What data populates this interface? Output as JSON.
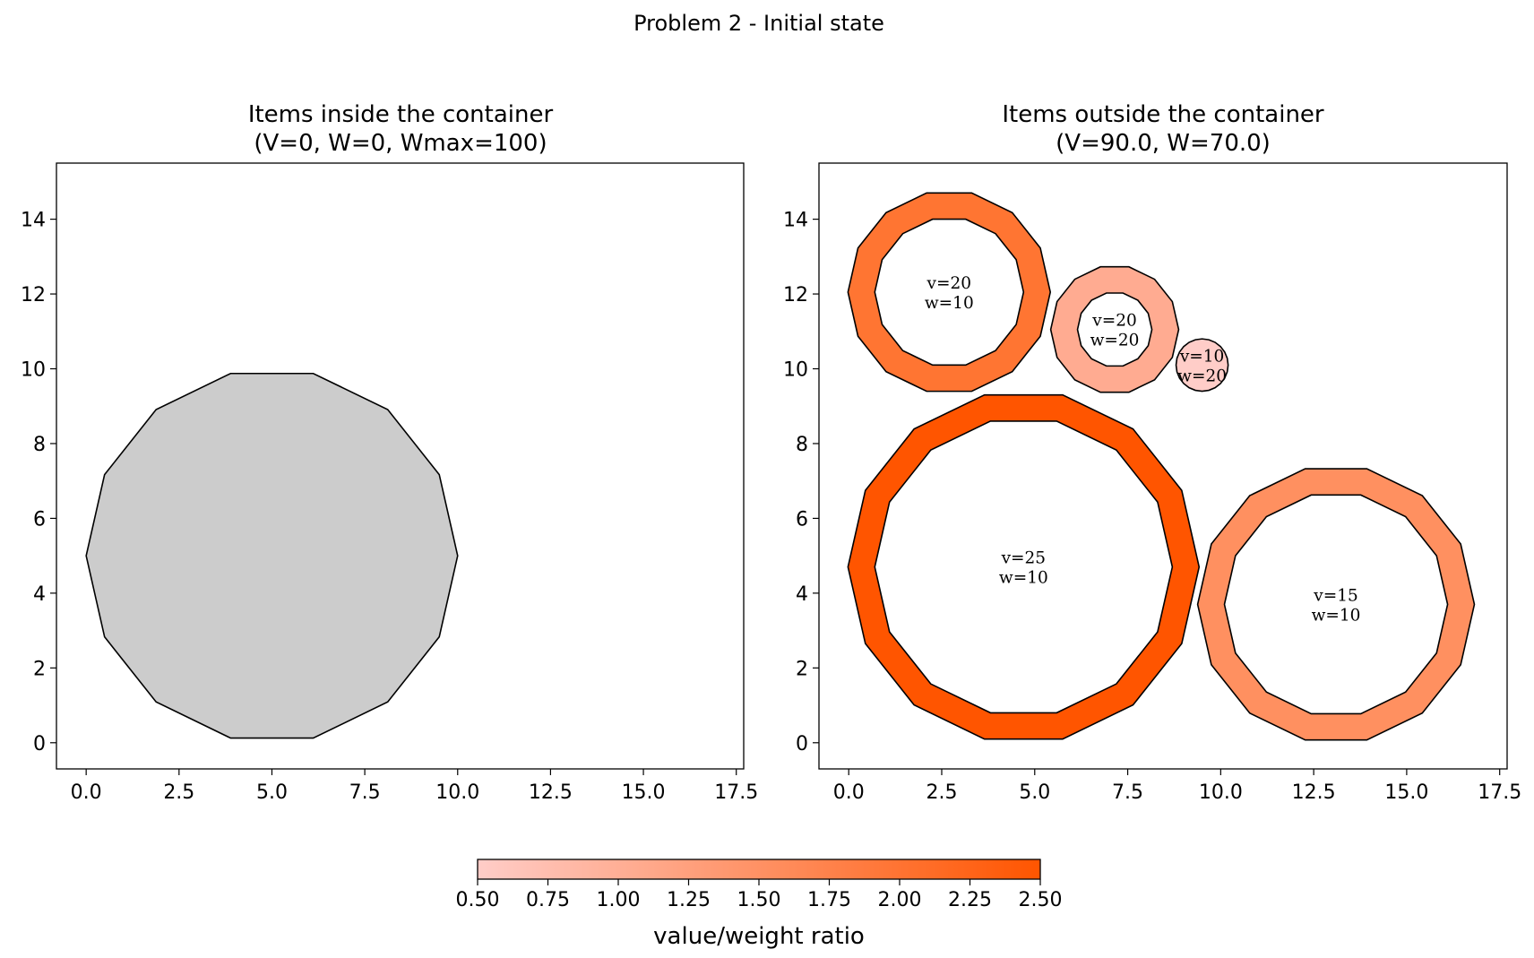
{
  "figure": {
    "suptitle": "Problem 2 - Initial state"
  },
  "chart_data": [
    {
      "type": "polygon-plot",
      "title_line1": "Items inside the container",
      "title_line2": "(V=0, W=0, Wmax=100)",
      "xlim": [
        -0.8,
        17.7
      ],
      "ylim": [
        -0.7,
        15.5
      ],
      "xticks": [
        "0.0",
        "2.5",
        "5.0",
        "7.5",
        "10.0",
        "12.5",
        "15.0",
        "17.5"
      ],
      "yticks": [
        "0",
        "2",
        "4",
        "6",
        "8",
        "10",
        "12",
        "14"
      ],
      "container": {
        "center": [
          5,
          5
        ],
        "radius": 5,
        "sides": 14,
        "fill": "#cccccc"
      },
      "items": []
    },
    {
      "type": "polygon-plot",
      "title_line1": "Items outside the container",
      "title_line2": "(V=90.0, W=70.0)",
      "xlim": [
        -0.8,
        17.7
      ],
      "ylim": [
        -0.7,
        15.5
      ],
      "xticks": [
        "0.0",
        "2.5",
        "5.0",
        "7.5",
        "10.0",
        "12.5",
        "15.0",
        "17.5"
      ],
      "yticks": [
        "0",
        "2",
        "4",
        "6",
        "8",
        "10",
        "12",
        "14"
      ],
      "items": [
        {
          "label_v": "v=20",
          "label_w": "w=10",
          "center": [
            2.7,
            12.05
          ],
          "outer_radius": 2.72,
          "inner_radius": 2.0,
          "sides": 14,
          "ratio": 2.0,
          "color": "#ff7532"
        },
        {
          "label_v": "v=20",
          "label_w": "w=20",
          "center": [
            7.15,
            11.05
          ],
          "outer_radius": 1.72,
          "inner_radius": 1.0,
          "sides": 14,
          "ratio": 1.0,
          "color": "#ffab91"
        },
        {
          "label_v": "v=10",
          "label_w": "w=20",
          "center": [
            9.5,
            10.1
          ],
          "outer_radius": 0.7,
          "inner_radius": 0,
          "sides": 24,
          "ratio": 0.5,
          "color": "#ffcdc8"
        },
        {
          "label_v": "v=25",
          "label_w": "w=10",
          "center": [
            4.7,
            4.7
          ],
          "outer_radius": 4.72,
          "inner_radius": 4.0,
          "sides": 14,
          "ratio": 2.5,
          "color": "#ff5500"
        },
        {
          "label_v": "v=15",
          "label_w": "w=10",
          "center": [
            13.1,
            3.7
          ],
          "outer_radius": 3.72,
          "inner_radius": 3.0,
          "sides": 14,
          "ratio": 1.5,
          "color": "#ff9060"
        }
      ]
    }
  ],
  "colorbar": {
    "label": "value/weight ratio",
    "range": [
      0.5,
      2.5
    ],
    "ticks": [
      "0.50",
      "0.75",
      "1.00",
      "1.25",
      "1.50",
      "1.75",
      "2.00",
      "2.25",
      "2.50"
    ],
    "color_low": "#ffcdc8",
    "color_high": "#ff5500"
  }
}
